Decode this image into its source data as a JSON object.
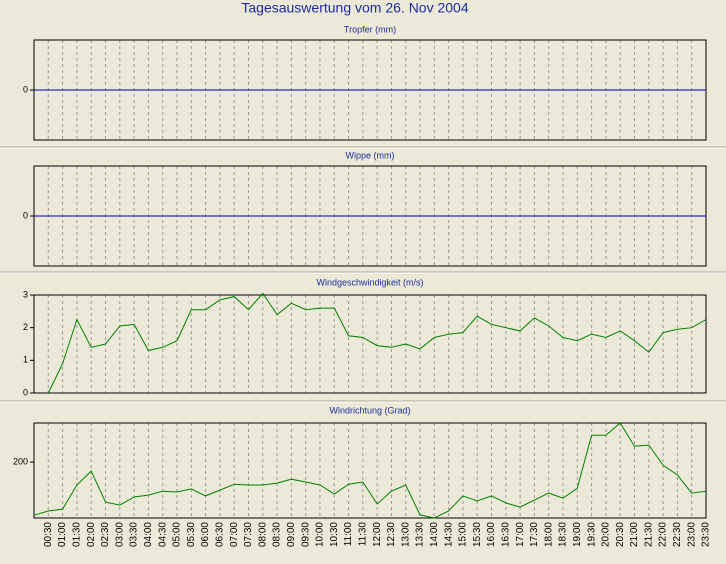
{
  "title": "Tagesauswertung vom 26. Nov 2004",
  "chart_data": [
    {
      "type": "line",
      "title": "Tropfer (mm)",
      "color": "#0000c0",
      "values": [
        0,
        0,
        0,
        0,
        0,
        0,
        0,
        0,
        0,
        0,
        0,
        0,
        0,
        0,
        0,
        0,
        0,
        0,
        0,
        0,
        0,
        0,
        0,
        0,
        0,
        0,
        0,
        0,
        0,
        0,
        0,
        0,
        0,
        0,
        0,
        0,
        0,
        0,
        0,
        0,
        0,
        0,
        0,
        0,
        0,
        0,
        0,
        0
      ],
      "ylim": [
        -1,
        1
      ],
      "yticks": [
        0
      ]
    },
    {
      "type": "line",
      "title": "Wippe (mm)",
      "color": "#0000c0",
      "values": [
        0,
        0,
        0,
        0,
        0,
        0,
        0,
        0,
        0,
        0,
        0,
        0,
        0,
        0,
        0,
        0,
        0,
        0,
        0,
        0,
        0,
        0,
        0,
        0,
        0,
        0,
        0,
        0,
        0,
        0,
        0,
        0,
        0,
        0,
        0,
        0,
        0,
        0,
        0,
        0,
        0,
        0,
        0,
        0,
        0,
        0,
        0,
        0
      ],
      "ylim": [
        -1,
        1
      ],
      "yticks": [
        0
      ]
    },
    {
      "type": "line",
      "title": "Windgeschwindigkeit (m/s)",
      "color": "#008000",
      "values": [
        null,
        0,
        0.9,
        2.25,
        1.4,
        1.5,
        2.05,
        2.1,
        1.3,
        1.4,
        1.6,
        2.55,
        2.55,
        2.85,
        2.95,
        2.55,
        3.05,
        2.4,
        2.75,
        2.55,
        2.6,
        2.6,
        1.75,
        1.7,
        1.45,
        1.4,
        1.5,
        1.35,
        1.7,
        1.8,
        1.85,
        2.35,
        2.1,
        2.0,
        1.9,
        2.3,
        2.05,
        1.7,
        1.6,
        1.8,
        1.7,
        1.9,
        1.6,
        1.25,
        1.85,
        1.95,
        2.0,
        2.25
      ],
      "ylim": [
        0,
        3
      ],
      "yticks": [
        0,
        1,
        2,
        3
      ]
    },
    {
      "type": "line",
      "title": "Windrichtung (Grad)",
      "color": "#008000",
      "categories": [
        null,
        "00:30",
        "01:00",
        "01:30",
        "02:00",
        "02:30",
        "03:00",
        "03:30",
        "04:00",
        "04:30",
        "05:00",
        "05:30",
        "06:00",
        "06:30",
        "07:00",
        "07:30",
        "08:00",
        "08:30",
        "09:00",
        "09:30",
        "10:00",
        "10:30",
        "11:00",
        "11:30",
        "12:00",
        "12:30",
        "13:00",
        "13:30",
        "14:00",
        "14:30",
        "15:00",
        "15:30",
        "16:00",
        "16:30",
        "17:00",
        "17:30",
        "18:00",
        "18:30",
        "19:00",
        "19:30",
        "20:00",
        "20:30",
        "21:00",
        "21:30",
        "22:00",
        "22:30",
        "23:00",
        "23:30"
      ],
      "values": [
        10,
        25,
        32,
        118,
        168,
        57,
        46,
        75,
        82,
        96,
        93,
        104,
        79,
        100,
        121,
        118,
        118,
        125,
        139,
        129,
        118,
        86,
        121,
        129,
        50,
        96,
        118,
        11,
        0,
        25,
        79,
        61,
        79,
        54,
        39,
        64,
        89,
        71,
        107,
        296,
        296,
        340,
        257,
        261,
        189,
        154,
        89,
        96
      ],
      "ylim": [
        0,
        340
      ],
      "yticks": [
        200
      ]
    }
  ]
}
